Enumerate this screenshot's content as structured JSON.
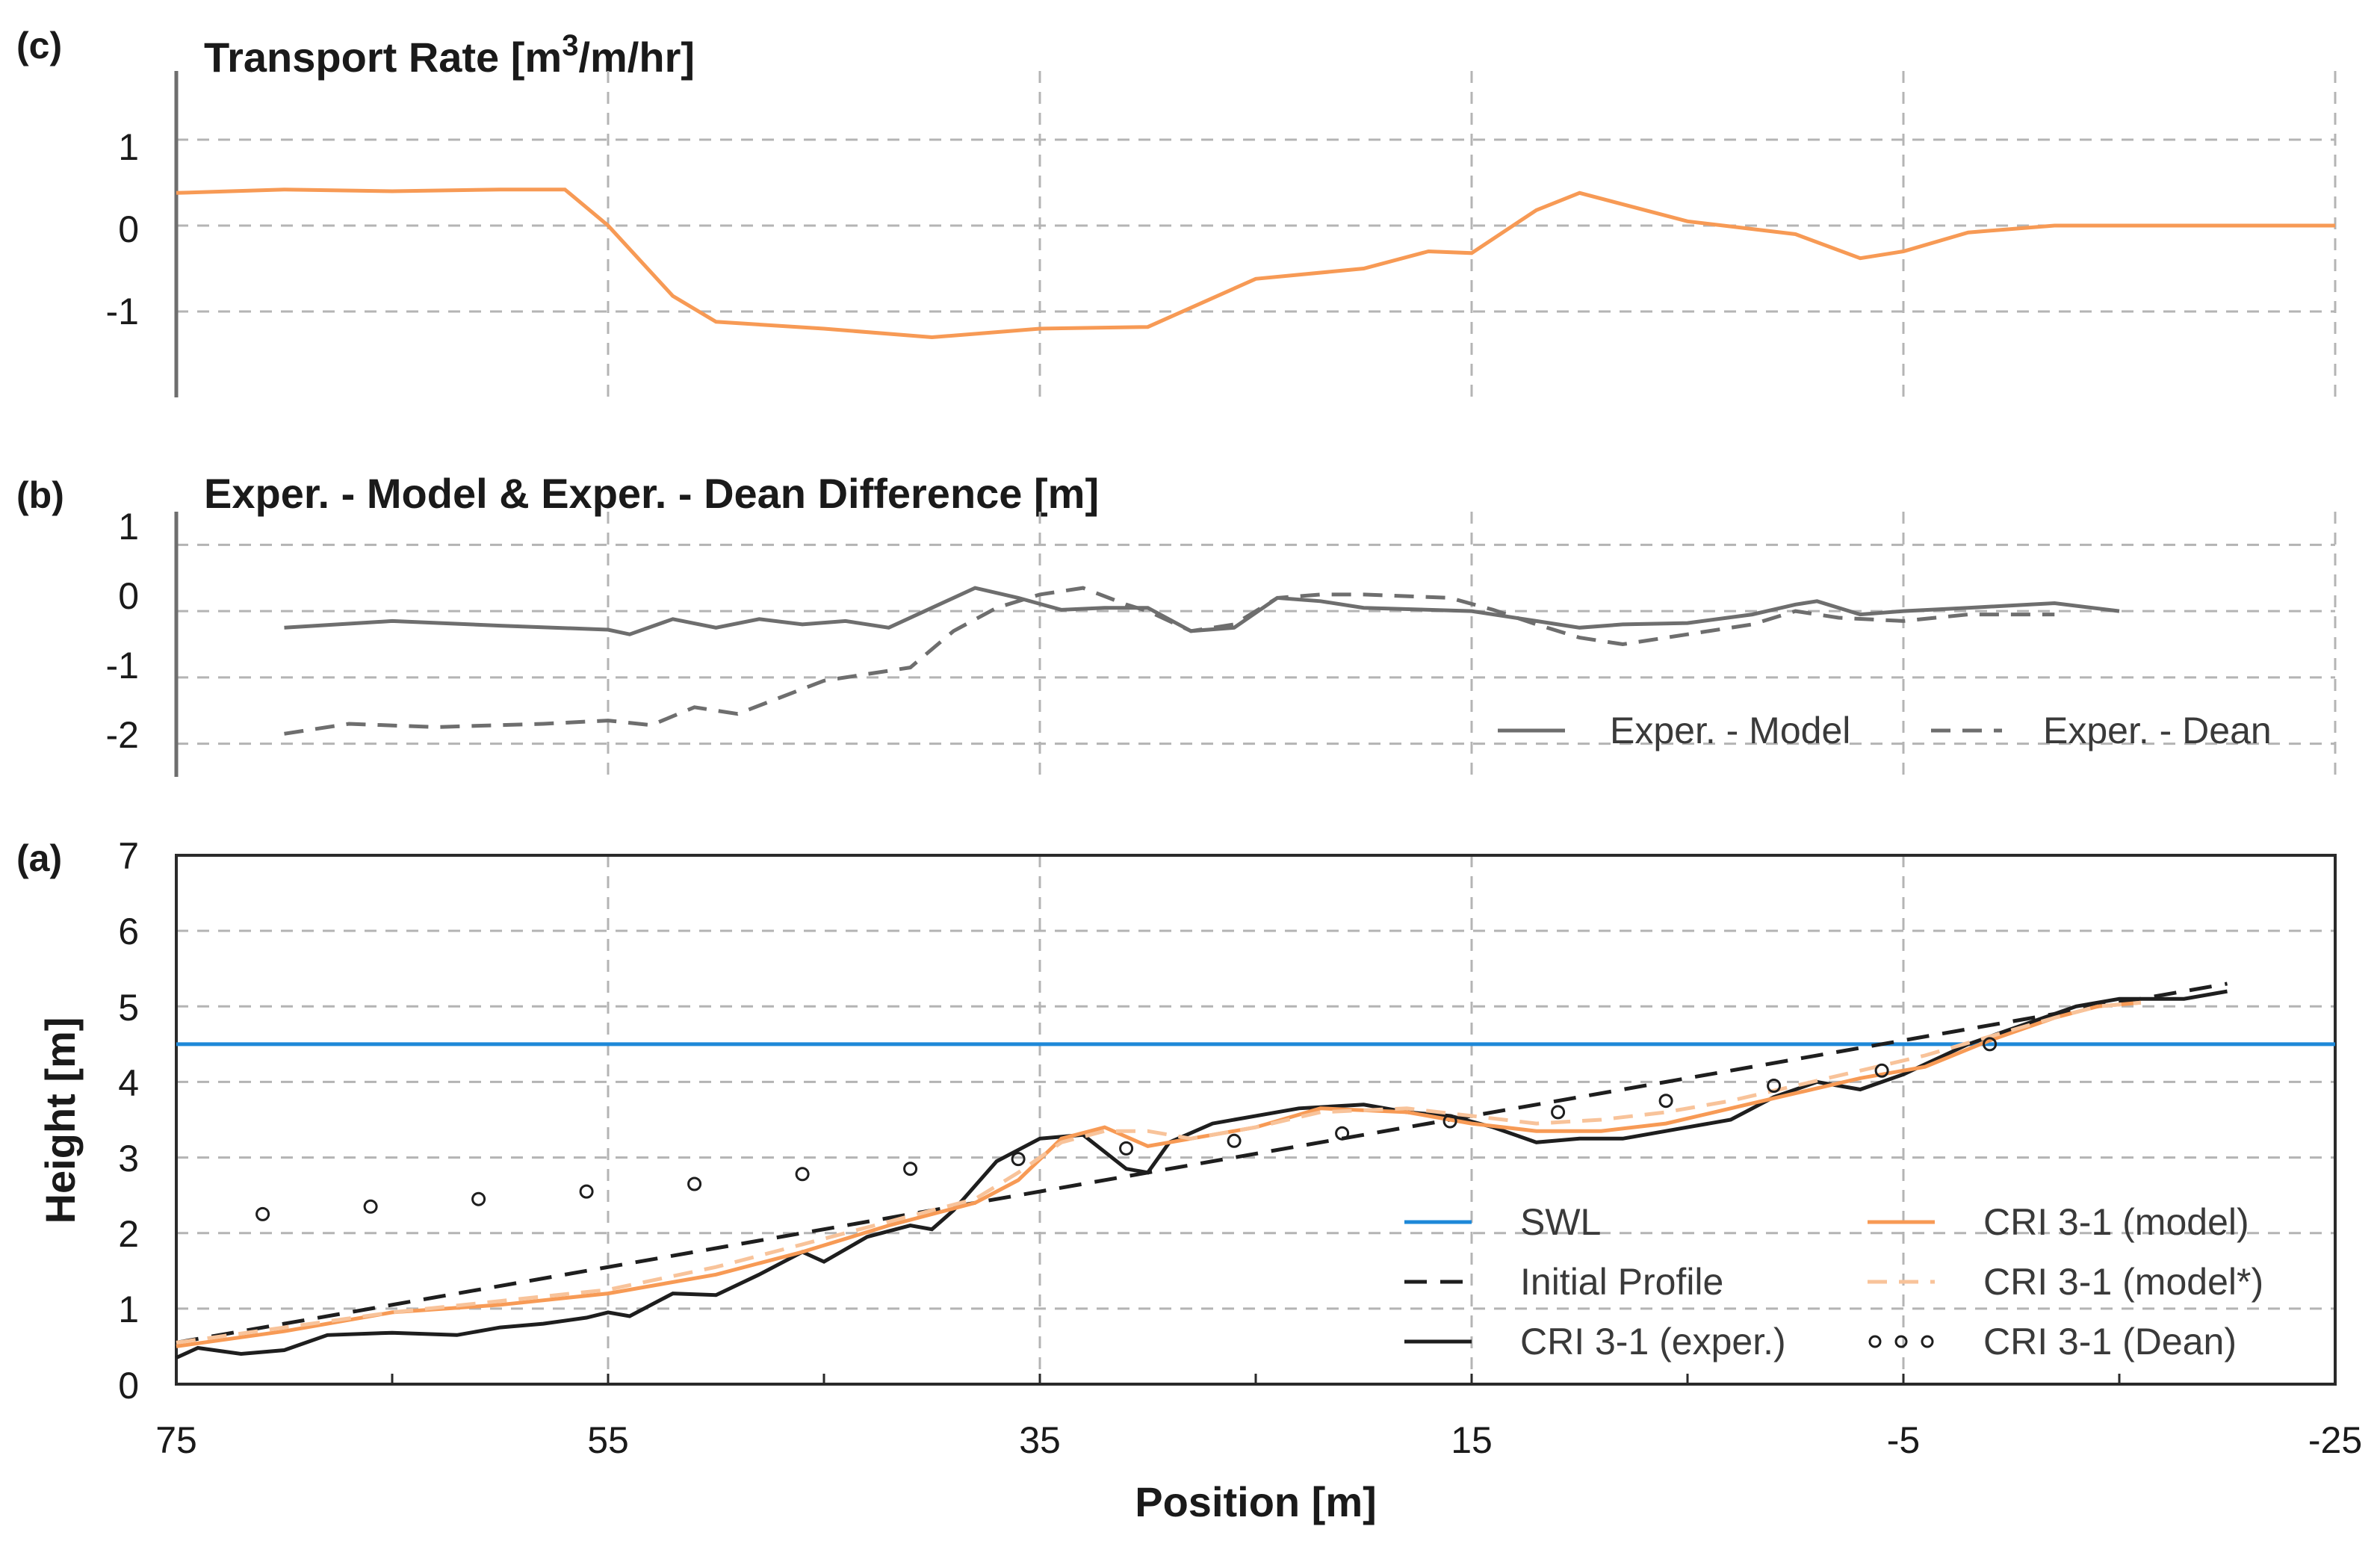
{
  "colors": {
    "orange": "#f79a55",
    "orange_light": "#f8c39a",
    "black": "#1e1e1e",
    "gray": "#6e6e6e",
    "blue": "#1e88d8",
    "grid": "#b4b4b4"
  },
  "x_ticks": [
    "75",
    "55",
    "35",
    "15",
    "-5",
    "-25"
  ],
  "xlabel": "Position [m]",
  "chart_data": [
    {
      "id": "c",
      "type": "line",
      "panel_label": "(c)",
      "title_pre": "Transport Rate [m",
      "title_sup": "3",
      "title_post": "/m/hr]",
      "xlim": [
        75,
        -25
      ],
      "ylim": [
        -2,
        1.8
      ],
      "yticks": [
        "1",
        "0",
        "-1"
      ],
      "series": [
        {
          "name": "Transport Rate",
          "color": "#f79a55",
          "points": [
            [
              75,
              0.38
            ],
            [
              70,
              0.42
            ],
            [
              65,
              0.4
            ],
            [
              60,
              0.42
            ],
            [
              57,
              0.42
            ],
            [
              55,
              0.0
            ],
            [
              52,
              -0.82
            ],
            [
              50,
              -1.12
            ],
            [
              45,
              -1.2
            ],
            [
              40,
              -1.3
            ],
            [
              35,
              -1.2
            ],
            [
              30,
              -1.18
            ],
            [
              25,
              -0.62
            ],
            [
              20,
              -0.5
            ],
            [
              17,
              -0.3
            ],
            [
              15,
              -0.32
            ],
            [
              12,
              0.18
            ],
            [
              10,
              0.38
            ],
            [
              5,
              0.05
            ],
            [
              0,
              -0.1
            ],
            [
              -3,
              -0.38
            ],
            [
              -5,
              -0.3
            ],
            [
              -8,
              -0.08
            ],
            [
              -12,
              0.0
            ],
            [
              -25,
              0.0
            ]
          ]
        }
      ]
    },
    {
      "id": "b",
      "type": "line",
      "panel_label": "(b)",
      "title": "Exper. - Model & Exper. - Dean Difference [m]",
      "xlim": [
        75,
        -25
      ],
      "ylim": [
        -2.5,
        1.5
      ],
      "yticks": [
        "1",
        "0",
        "-1",
        "-2"
      ],
      "legend": {
        "placement": "bottom-right",
        "entries": [
          "Exper. - Model",
          "Exper. - Dean"
        ]
      },
      "series": [
        {
          "name": "Exper. - Model",
          "style": "solid",
          "color": "#6e6e6e",
          "points": [
            [
              70,
              -0.25
            ],
            [
              65,
              -0.15
            ],
            [
              60,
              -0.22
            ],
            [
              55,
              -0.28
            ],
            [
              54,
              -0.35
            ],
            [
              52,
              -0.12
            ],
            [
              50,
              -0.25
            ],
            [
              48,
              -0.12
            ],
            [
              46,
              -0.2
            ],
            [
              44,
              -0.15
            ],
            [
              42,
              -0.25
            ],
            [
              40,
              0.05
            ],
            [
              38,
              0.35
            ],
            [
              36,
              0.2
            ],
            [
              34,
              0.02
            ],
            [
              32,
              0.05
            ],
            [
              30,
              0.05
            ],
            [
              28,
              -0.3
            ],
            [
              26,
              -0.25
            ],
            [
              24,
              0.2
            ],
            [
              22,
              0.15
            ],
            [
              20,
              0.05
            ],
            [
              15,
              0.0
            ],
            [
              12,
              -0.15
            ],
            [
              10,
              -0.25
            ],
            [
              8,
              -0.2
            ],
            [
              5,
              -0.18
            ],
            [
              2,
              -0.05
            ],
            [
              0,
              0.1
            ],
            [
              -1,
              0.15
            ],
            [
              -3,
              -0.05
            ],
            [
              -5,
              0.0
            ],
            [
              -8,
              0.05
            ],
            [
              -12,
              0.12
            ],
            [
              -15,
              0.0
            ]
          ]
        },
        {
          "name": "Exper. - Dean",
          "style": "dashed",
          "color": "#6e6e6e",
          "points": [
            [
              70,
              -1.85
            ],
            [
              67,
              -1.7
            ],
            [
              63,
              -1.75
            ],
            [
              58,
              -1.7
            ],
            [
              55,
              -1.65
            ],
            [
              53,
              -1.72
            ],
            [
              51,
              -1.45
            ],
            [
              49,
              -1.55
            ],
            [
              47,
              -1.3
            ],
            [
              45,
              -1.05
            ],
            [
              43,
              -0.95
            ],
            [
              41,
              -0.85
            ],
            [
              39,
              -0.3
            ],
            [
              37,
              0.05
            ],
            [
              35,
              0.25
            ],
            [
              33,
              0.35
            ],
            [
              31,
              0.1
            ],
            [
              30,
              0.0
            ],
            [
              28,
              -0.3
            ],
            [
              26,
              -0.2
            ],
            [
              24,
              0.2
            ],
            [
              22,
              0.25
            ],
            [
              20,
              0.25
            ],
            [
              16,
              0.2
            ],
            [
              14,
              0.02
            ],
            [
              12,
              -0.2
            ],
            [
              10,
              -0.4
            ],
            [
              8,
              -0.5
            ],
            [
              5,
              -0.35
            ],
            [
              2,
              -0.2
            ],
            [
              0,
              0.0
            ],
            [
              -2,
              -0.1
            ],
            [
              -5,
              -0.15
            ],
            [
              -8,
              -0.05
            ],
            [
              -12,
              -0.05
            ]
          ]
        }
      ]
    },
    {
      "id": "a",
      "type": "line",
      "panel_label": "(a)",
      "xlabel": "Position [m]",
      "ylabel": "Height [m]",
      "xlim": [
        75,
        -25
      ],
      "ylim": [
        0,
        7
      ],
      "yticks": [
        "7",
        "6",
        "5",
        "4",
        "3",
        "2",
        "1",
        "0"
      ],
      "legend": {
        "placement": "bottom-right",
        "entries": [
          "SWL",
          "Initial Profile",
          "CRI 3-1 (exper.)",
          "CRI 3-1 (model)",
          "CRI 3-1 (model*)",
          "CRI 3-1 (Dean)"
        ]
      },
      "series": [
        {
          "name": "SWL",
          "style": "solid",
          "color": "#1e88d8",
          "points": [
            [
              75,
              4.5
            ],
            [
              -25,
              4.5
            ]
          ]
        },
        {
          "name": "Initial Profile",
          "style": "dashed",
          "color": "#1e1e1e",
          "points": [
            [
              75,
              0.55
            ],
            [
              -20,
              5.3
            ]
          ]
        },
        {
          "name": "CRI 3-1 (exper.)",
          "style": "solid",
          "color": "#1e1e1e",
          "points": [
            [
              75,
              0.35
            ],
            [
              74,
              0.48
            ],
            [
              72,
              0.4
            ],
            [
              70,
              0.45
            ],
            [
              68,
              0.65
            ],
            [
              65,
              0.68
            ],
            [
              62,
              0.65
            ],
            [
              60,
              0.75
            ],
            [
              58,
              0.8
            ],
            [
              56,
              0.88
            ],
            [
              55,
              0.95
            ],
            [
              54,
              0.9
            ],
            [
              52,
              1.2
            ],
            [
              50,
              1.18
            ],
            [
              48,
              1.45
            ],
            [
              46,
              1.75
            ],
            [
              45,
              1.62
            ],
            [
              43,
              1.95
            ],
            [
              41,
              2.1
            ],
            [
              40,
              2.05
            ],
            [
              39,
              2.3
            ],
            [
              37,
              2.95
            ],
            [
              35,
              3.25
            ],
            [
              33,
              3.3
            ],
            [
              31,
              2.85
            ],
            [
              30,
              2.8
            ],
            [
              29,
              3.2
            ],
            [
              27,
              3.45
            ],
            [
              25,
              3.55
            ],
            [
              23,
              3.65
            ],
            [
              20,
              3.7
            ],
            [
              18,
              3.6
            ],
            [
              16,
              3.55
            ],
            [
              14,
              3.4
            ],
            [
              12,
              3.2
            ],
            [
              10,
              3.25
            ],
            [
              8,
              3.25
            ],
            [
              5,
              3.4
            ],
            [
              3,
              3.5
            ],
            [
              1,
              3.8
            ],
            [
              -1,
              4.0
            ],
            [
              -3,
              3.9
            ],
            [
              -5,
              4.1
            ],
            [
              -8,
              4.5
            ],
            [
              -11,
              4.8
            ],
            [
              -13,
              5.0
            ],
            [
              -15,
              5.1
            ],
            [
              -18,
              5.1
            ],
            [
              -20,
              5.2
            ]
          ]
        },
        {
          "name": "CRI 3-1 (model)",
          "style": "solid",
          "color": "#f79a55",
          "points": [
            [
              75,
              0.5
            ],
            [
              70,
              0.7
            ],
            [
              65,
              0.95
            ],
            [
              60,
              1.05
            ],
            [
              55,
              1.2
            ],
            [
              50,
              1.45
            ],
            [
              46,
              1.75
            ],
            [
              42,
              2.1
            ],
            [
              38,
              2.4
            ],
            [
              36,
              2.7
            ],
            [
              34,
              3.25
            ],
            [
              32,
              3.4
            ],
            [
              30,
              3.15
            ],
            [
              28,
              3.25
            ],
            [
              25,
              3.4
            ],
            [
              22,
              3.65
            ],
            [
              18,
              3.6
            ],
            [
              15,
              3.45
            ],
            [
              12,
              3.35
            ],
            [
              9,
              3.35
            ],
            [
              6,
              3.45
            ],
            [
              3,
              3.65
            ],
            [
              0,
              3.85
            ],
            [
              -3,
              4.05
            ],
            [
              -6,
              4.2
            ],
            [
              -9,
              4.55
            ],
            [
              -12,
              4.85
            ],
            [
              -14,
              5.0
            ],
            [
              -16,
              5.05
            ]
          ]
        },
        {
          "name": "CRI 3-1 (model*)",
          "style": "dashed",
          "color": "#f8c39a",
          "points": [
            [
              75,
              0.55
            ],
            [
              70,
              0.75
            ],
            [
              65,
              0.95
            ],
            [
              60,
              1.1
            ],
            [
              55,
              1.25
            ],
            [
              50,
              1.55
            ],
            [
              46,
              1.85
            ],
            [
              42,
              2.15
            ],
            [
              38,
              2.45
            ],
            [
              36,
              2.8
            ],
            [
              34,
              3.2
            ],
            [
              32,
              3.35
            ],
            [
              30,
              3.35
            ],
            [
              28,
              3.25
            ],
            [
              25,
              3.4
            ],
            [
              22,
              3.6
            ],
            [
              18,
              3.65
            ],
            [
              15,
              3.55
            ],
            [
              12,
              3.45
            ],
            [
              9,
              3.5
            ],
            [
              6,
              3.6
            ],
            [
              3,
              3.75
            ],
            [
              0,
              3.95
            ],
            [
              -3,
              4.15
            ],
            [
              -6,
              4.35
            ],
            [
              -9,
              4.6
            ],
            [
              -12,
              4.85
            ],
            [
              -14,
              5.0
            ],
            [
              -16,
              5.05
            ]
          ]
        },
        {
          "name": "CRI 3-1 (Dean)",
          "style": "markers",
          "color": "#1e1e1e",
          "points": [
            [
              71,
              2.25
            ],
            [
              66,
              2.35
            ],
            [
              61,
              2.45
            ],
            [
              56,
              2.55
            ],
            [
              51,
              2.65
            ],
            [
              46,
              2.78
            ],
            [
              41,
              2.85
            ],
            [
              36,
              2.98
            ],
            [
              31,
              3.12
            ],
            [
              26,
              3.22
            ],
            [
              21,
              3.32
            ],
            [
              16,
              3.48
            ],
            [
              11,
              3.6
            ],
            [
              6,
              3.75
            ],
            [
              1,
              3.95
            ],
            [
              -4,
              4.15
            ],
            [
              -9,
              4.5
            ]
          ]
        }
      ]
    }
  ]
}
